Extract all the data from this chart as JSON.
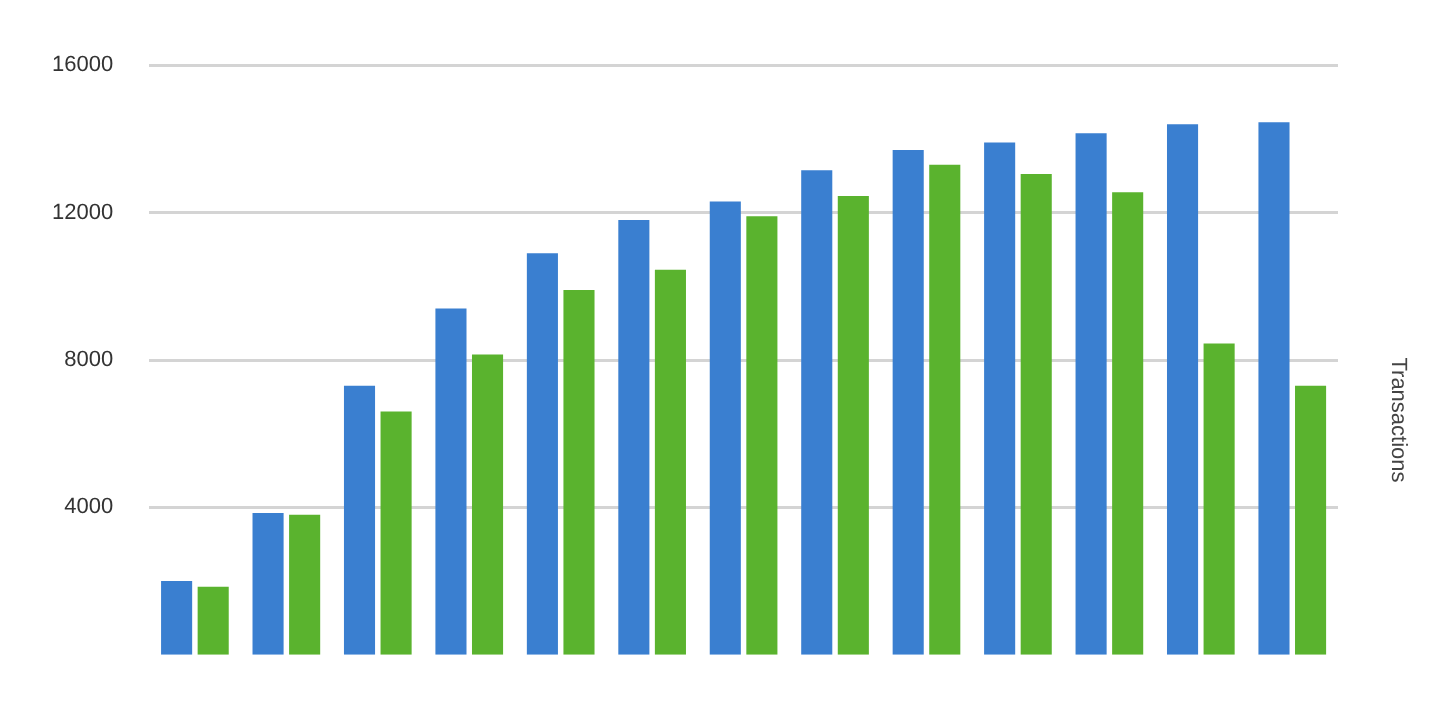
{
  "chart_data": {
    "type": "bar",
    "y2label": "Transactions",
    "categories": [
      null,
      null,
      null,
      null,
      null,
      null,
      null,
      null,
      null,
      null,
      null,
      null,
      null
    ],
    "series": [
      {
        "color": "#3a7fd0",
        "values": [
          2000,
          3850,
          7300,
          9400,
          10900,
          11800,
          12300,
          13150,
          13700,
          13900,
          14150,
          14400,
          14450
        ]
      },
      {
        "color": "#5ab32e",
        "values": [
          1850,
          3800,
          6600,
          8150,
          9900,
          10450,
          11900,
          12450,
          13300,
          13050,
          12550,
          8450,
          7300
        ]
      }
    ],
    "ylim": [
      0,
      16000
    ],
    "yticks": [
      4000,
      8000,
      12000,
      16000
    ],
    "grid": "y",
    "legend": false,
    "tick_labels": "y"
  }
}
